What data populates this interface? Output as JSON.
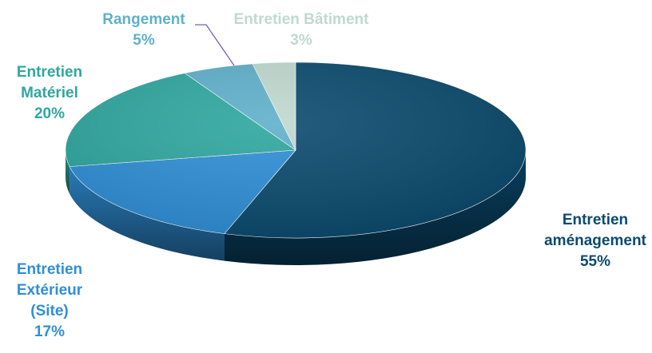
{
  "chart_data": {
    "type": "pie",
    "style": "3d",
    "title": "",
    "slices": [
      {
        "label": "Entretien aménagement",
        "label_lines": [
          "Entretien",
          "aménagement"
        ],
        "value": 55,
        "display": "55%",
        "color": "#0b4a6e"
      },
      {
        "label": "Entretien Extérieur (Site)",
        "label_lines": [
          "Entretien",
          "Extérieur",
          "(Site)"
        ],
        "value": 17,
        "display": "17%",
        "color": "#2f8fd6"
      },
      {
        "label": "Entretien Matériel",
        "label_lines": [
          "Entretien",
          "Matériel"
        ],
        "value": 20,
        "display": "20%",
        "color": "#2ea79f"
      },
      {
        "label": "Rangement",
        "label_lines": [
          "Rangement"
        ],
        "value": 5,
        "display": "5%",
        "color": "#5fb0cb"
      },
      {
        "label": "Entretien Bâtiment",
        "label_lines": [
          "Entretien Bâtiment"
        ],
        "value": 3,
        "display": "3%",
        "color": "#bfd9cf"
      }
    ]
  }
}
